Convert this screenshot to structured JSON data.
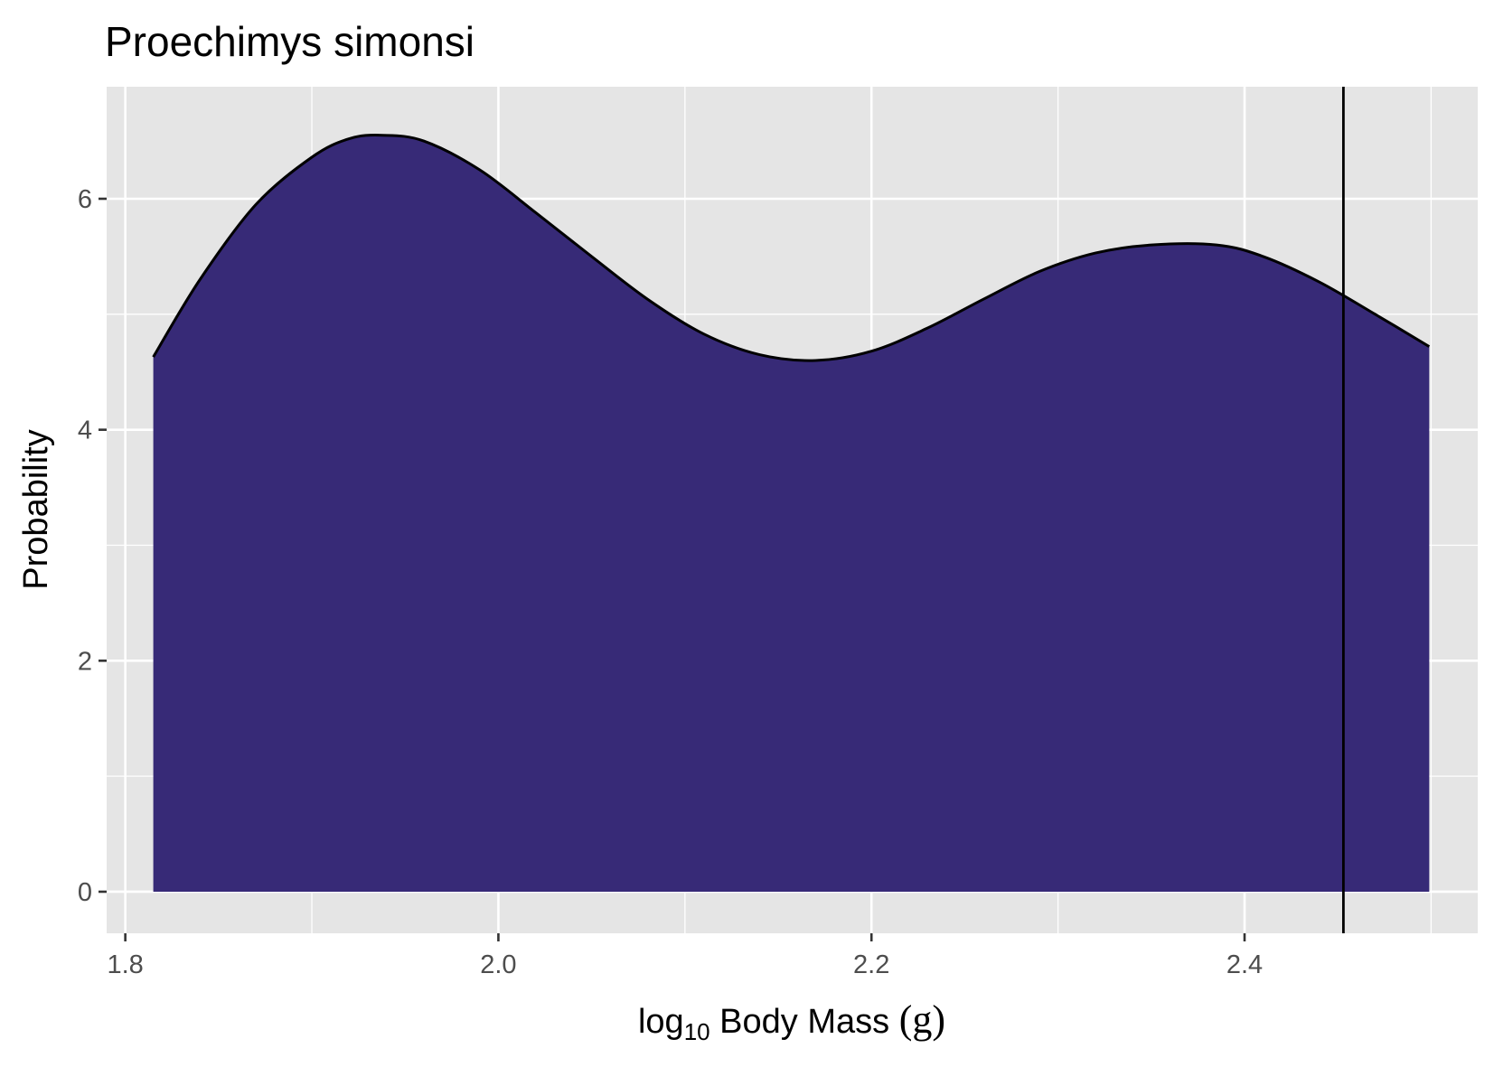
{
  "chart_data": {
    "type": "area",
    "title": "Proechimys simonsi",
    "xlabel": {
      "prefix": "log",
      "subscript": "10",
      "rest": " Body Mass ",
      "unit": "(g)"
    },
    "ylabel": "Probability",
    "xlim": [
      1.79,
      2.525
    ],
    "ylim": [
      -0.36,
      6.97
    ],
    "x_ticks": [
      {
        "value": 1.8,
        "label": "1.8"
      },
      {
        "value": 2.0,
        "label": "2.0"
      },
      {
        "value": 2.2,
        "label": "2.2"
      },
      {
        "value": 2.4,
        "label": "2.4"
      }
    ],
    "y_ticks": [
      {
        "value": 0,
        "label": "0"
      },
      {
        "value": 2,
        "label": "2"
      },
      {
        "value": 4,
        "label": "4"
      },
      {
        "value": 6,
        "label": "6"
      }
    ],
    "grid": true,
    "legend": "none",
    "series": [
      {
        "x": [
          1.815,
          1.84,
          1.87,
          1.9,
          1.92,
          1.938,
          1.96,
          1.99,
          2.02,
          2.05,
          2.08,
          2.11,
          2.14,
          2.17,
          2.2,
          2.23,
          2.26,
          2.29,
          2.32,
          2.35,
          2.385,
          2.41,
          2.44,
          2.47,
          2.499
        ],
        "y": [
          4.63,
          5.3,
          5.95,
          6.36,
          6.52,
          6.55,
          6.5,
          6.25,
          5.88,
          5.5,
          5.13,
          4.83,
          4.65,
          4.6,
          4.68,
          4.88,
          5.13,
          5.37,
          5.53,
          5.6,
          5.6,
          5.5,
          5.28,
          5.0,
          4.72
        ]
      }
    ],
    "reference_line_x": 2.453,
    "colors": {
      "fill": "#372a77",
      "outline": "#000000",
      "panel_bg": "#e5e5e5",
      "grid": "#ffffff",
      "tick_label": "#4d4d4d",
      "reference_line": "#000000"
    }
  }
}
